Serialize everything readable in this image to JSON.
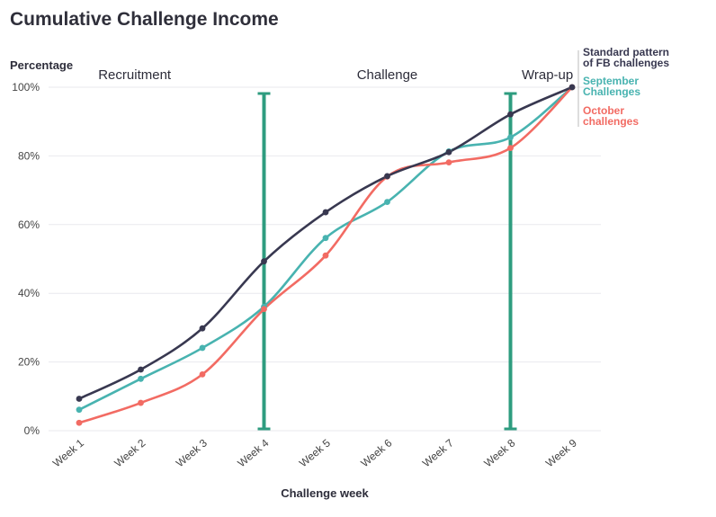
{
  "chart_data": {
    "type": "line",
    "title": "Cumulative Challenge Income",
    "ylabel": "Percentage",
    "xlabel": "Challenge week",
    "categories": [
      "Week 1",
      "Week 2",
      "Week 3",
      "Week 4",
      "Week 5",
      "Week 6",
      "Week 7",
      "Week 8",
      "Week 9"
    ],
    "ylim": [
      0,
      100
    ],
    "y_ticks": [
      "0%",
      "20%",
      "40%",
      "60%",
      "80%",
      "100%"
    ],
    "grid": true,
    "series": [
      {
        "name": "Standard pattern of FB challenges",
        "color": "#383850",
        "values": [
          9.3,
          17.8,
          29.8,
          49.3,
          63.6,
          74.1,
          81.1,
          92.1,
          100
        ]
      },
      {
        "name": "September Challenges",
        "color": "#48b3b0",
        "values": [
          6.1,
          15.1,
          24.1,
          36.1,
          56.1,
          66.6,
          81.3,
          85.4,
          100
        ]
      },
      {
        "name": "October challenges",
        "color": "#f26b63",
        "values": [
          2.3,
          8.1,
          16.4,
          35.4,
          51.0,
          74.0,
          78.1,
          82.3,
          100
        ]
      }
    ],
    "phases": [
      {
        "label": "Recruitment",
        "at": 1.9
      },
      {
        "label": "Challenge",
        "at": 6.0
      },
      {
        "label": "Wrap-up",
        "at": 8.6
      }
    ],
    "markers": [
      {
        "at": 4,
        "color": "#2e9c7f"
      },
      {
        "at": 8,
        "color": "#2e9c7f"
      }
    ]
  }
}
